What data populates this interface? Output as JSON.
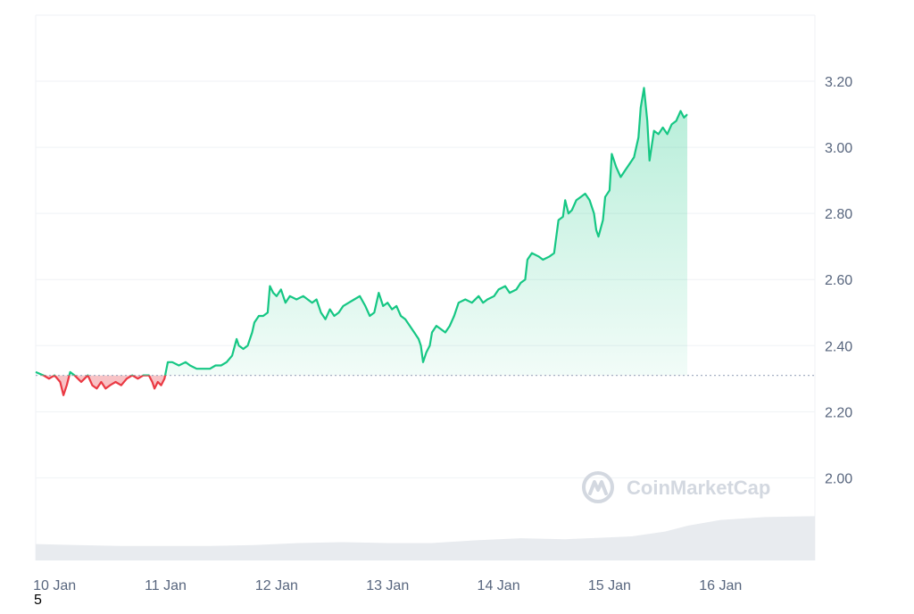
{
  "corner_label": "5",
  "watermark": {
    "text": "CoinMarketCap",
    "icon": "coinmarketcap-logo"
  },
  "colors": {
    "up": "#16c784",
    "down": "#ea3943",
    "grid": "#eff2f5",
    "baseline": "#a6b0c3",
    "volume": "#e8ebef",
    "tick_text": "#58667e"
  },
  "chart_data": {
    "type": "area",
    "title": "",
    "xlabel": "",
    "ylabel": "",
    "x_ticks": [
      "10 Jan",
      "11 Jan",
      "12 Jan",
      "13 Jan",
      "14 Jan",
      "15 Jan",
      "16 Jan"
    ],
    "y_ticks": [
      2.0,
      2.2,
      2.4,
      2.6,
      2.8,
      3.0,
      3.2
    ],
    "ylim": [
      1.75,
      3.4
    ],
    "xlim": [
      -0.17,
      6.85
    ],
    "baseline": 2.31,
    "grid": true,
    "legend": "none",
    "series": [
      {
        "values": [
          [
            -0.17,
            2.32
          ],
          [
            -0.1,
            2.31
          ],
          [
            -0.05,
            2.3
          ],
          [
            0.0,
            2.31
          ],
          [
            0.05,
            2.29
          ],
          [
            0.08,
            2.25
          ],
          [
            0.11,
            2.28
          ],
          [
            0.14,
            2.32
          ],
          [
            0.18,
            2.31
          ],
          [
            0.21,
            2.3
          ],
          [
            0.24,
            2.29
          ],
          [
            0.27,
            2.3
          ],
          [
            0.3,
            2.31
          ],
          [
            0.34,
            2.28
          ],
          [
            0.38,
            2.27
          ],
          [
            0.42,
            2.29
          ],
          [
            0.46,
            2.27
          ],
          [
            0.5,
            2.28
          ],
          [
            0.55,
            2.29
          ],
          [
            0.6,
            2.28
          ],
          [
            0.65,
            2.3
          ],
          [
            0.7,
            2.31
          ],
          [
            0.75,
            2.3
          ],
          [
            0.8,
            2.31
          ],
          [
            0.85,
            2.31
          ],
          [
            0.88,
            2.29
          ],
          [
            0.9,
            2.27
          ],
          [
            0.93,
            2.29
          ],
          [
            0.96,
            2.28
          ],
          [
            0.99,
            2.3
          ],
          [
            1.02,
            2.35
          ],
          [
            1.06,
            2.35
          ],
          [
            1.12,
            2.34
          ],
          [
            1.18,
            2.35
          ],
          [
            1.22,
            2.34
          ],
          [
            1.28,
            2.33
          ],
          [
            1.34,
            2.33
          ],
          [
            1.4,
            2.33
          ],
          [
            1.45,
            2.34
          ],
          [
            1.5,
            2.34
          ],
          [
            1.55,
            2.35
          ],
          [
            1.6,
            2.37
          ],
          [
            1.64,
            2.42
          ],
          [
            1.66,
            2.4
          ],
          [
            1.7,
            2.39
          ],
          [
            1.74,
            2.4
          ],
          [
            1.78,
            2.44
          ],
          [
            1.8,
            2.47
          ],
          [
            1.84,
            2.49
          ],
          [
            1.88,
            2.49
          ],
          [
            1.92,
            2.5
          ],
          [
            1.94,
            2.58
          ],
          [
            1.97,
            2.56
          ],
          [
            2.0,
            2.55
          ],
          [
            2.04,
            2.57
          ],
          [
            2.08,
            2.53
          ],
          [
            2.12,
            2.55
          ],
          [
            2.18,
            2.54
          ],
          [
            2.24,
            2.55
          ],
          [
            2.28,
            2.54
          ],
          [
            2.32,
            2.53
          ],
          [
            2.36,
            2.54
          ],
          [
            2.4,
            2.5
          ],
          [
            2.44,
            2.48
          ],
          [
            2.48,
            2.51
          ],
          [
            2.52,
            2.49
          ],
          [
            2.56,
            2.5
          ],
          [
            2.6,
            2.52
          ],
          [
            2.65,
            2.53
          ],
          [
            2.7,
            2.54
          ],
          [
            2.75,
            2.55
          ],
          [
            2.8,
            2.52
          ],
          [
            2.84,
            2.49
          ],
          [
            2.88,
            2.5
          ],
          [
            2.92,
            2.56
          ],
          [
            2.96,
            2.52
          ],
          [
            3.0,
            2.53
          ],
          [
            3.04,
            2.51
          ],
          [
            3.08,
            2.52
          ],
          [
            3.12,
            2.49
          ],
          [
            3.16,
            2.48
          ],
          [
            3.2,
            2.46
          ],
          [
            3.24,
            2.44
          ],
          [
            3.28,
            2.42
          ],
          [
            3.3,
            2.4
          ],
          [
            3.32,
            2.35
          ],
          [
            3.35,
            2.38
          ],
          [
            3.38,
            2.4
          ],
          [
            3.4,
            2.44
          ],
          [
            3.44,
            2.46
          ],
          [
            3.48,
            2.45
          ],
          [
            3.52,
            2.44
          ],
          [
            3.56,
            2.46
          ],
          [
            3.6,
            2.49
          ],
          [
            3.64,
            2.53
          ],
          [
            3.7,
            2.54
          ],
          [
            3.76,
            2.53
          ],
          [
            3.82,
            2.55
          ],
          [
            3.86,
            2.53
          ],
          [
            3.9,
            2.54
          ],
          [
            3.96,
            2.55
          ],
          [
            4.0,
            2.57
          ],
          [
            4.06,
            2.58
          ],
          [
            4.1,
            2.56
          ],
          [
            4.16,
            2.57
          ],
          [
            4.2,
            2.59
          ],
          [
            4.24,
            2.6
          ],
          [
            4.26,
            2.66
          ],
          [
            4.3,
            2.68
          ],
          [
            4.36,
            2.67
          ],
          [
            4.4,
            2.66
          ],
          [
            4.46,
            2.67
          ],
          [
            4.5,
            2.68
          ],
          [
            4.54,
            2.78
          ],
          [
            4.58,
            2.79
          ],
          [
            4.6,
            2.84
          ],
          [
            4.63,
            2.8
          ],
          [
            4.66,
            2.81
          ],
          [
            4.7,
            2.84
          ],
          [
            4.74,
            2.85
          ],
          [
            4.78,
            2.86
          ],
          [
            4.82,
            2.84
          ],
          [
            4.86,
            2.8
          ],
          [
            4.88,
            2.75
          ],
          [
            4.9,
            2.73
          ],
          [
            4.94,
            2.78
          ],
          [
            4.96,
            2.85
          ],
          [
            5.0,
            2.87
          ],
          [
            5.02,
            2.98
          ],
          [
            5.06,
            2.94
          ],
          [
            5.1,
            2.91
          ],
          [
            5.14,
            2.93
          ],
          [
            5.18,
            2.95
          ],
          [
            5.22,
            2.97
          ],
          [
            5.26,
            3.03
          ],
          [
            5.28,
            3.12
          ],
          [
            5.31,
            3.18
          ],
          [
            5.34,
            3.08
          ],
          [
            5.36,
            2.96
          ],
          [
            5.4,
            3.05
          ],
          [
            5.44,
            3.04
          ],
          [
            5.48,
            3.06
          ],
          [
            5.52,
            3.04
          ],
          [
            5.56,
            3.07
          ],
          [
            5.6,
            3.08
          ],
          [
            5.64,
            3.11
          ],
          [
            5.67,
            3.09
          ],
          [
            5.7,
            3.1
          ]
        ]
      }
    ],
    "volume": [
      [
        -0.17,
        0.17
      ],
      [
        0.2,
        0.16
      ],
      [
        0.6,
        0.15
      ],
      [
        1.0,
        0.15
      ],
      [
        1.4,
        0.15
      ],
      [
        1.8,
        0.16
      ],
      [
        2.2,
        0.18
      ],
      [
        2.6,
        0.19
      ],
      [
        3.0,
        0.18
      ],
      [
        3.4,
        0.18
      ],
      [
        3.8,
        0.21
      ],
      [
        4.2,
        0.23
      ],
      [
        4.6,
        0.22
      ],
      [
        5.0,
        0.24
      ],
      [
        5.2,
        0.25
      ],
      [
        5.5,
        0.3
      ],
      [
        5.7,
        0.36
      ],
      [
        6.0,
        0.42
      ],
      [
        6.4,
        0.45
      ],
      [
        6.85,
        0.46
      ]
    ]
  }
}
